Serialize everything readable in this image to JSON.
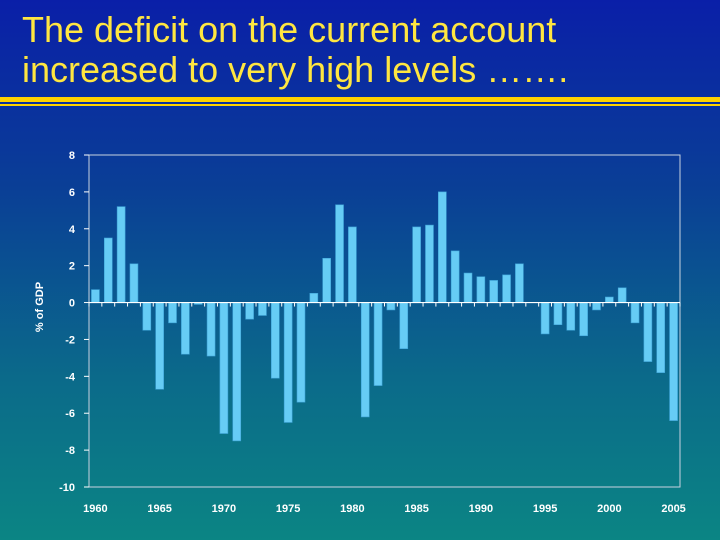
{
  "slide": {
    "title_lines": [
      "The deficit on the current account",
      "increased to very high levels ……."
    ],
    "title_color": "#ffe640",
    "rule_color": "#ffd200"
  },
  "chart_data": {
    "type": "bar",
    "title": "",
    "xlabel": "",
    "ylabel": "% of GDP",
    "ylim": [
      -10,
      8
    ],
    "yticks": [
      "8",
      "6",
      "4",
      "2",
      "0",
      "-2",
      "-4",
      "-6",
      "-8",
      "-10"
    ],
    "xtick_labels": [
      "1960",
      "1965",
      "1970",
      "1975",
      "1980",
      "1985",
      "1990",
      "1995",
      "2000",
      "2005"
    ],
    "grid": false,
    "bar_color": "#66ccf5",
    "categories": [
      1960,
      1961,
      1962,
      1963,
      1964,
      1965,
      1966,
      1967,
      1968,
      1969,
      1970,
      1971,
      1972,
      1973,
      1974,
      1975,
      1976,
      1977,
      1978,
      1979,
      1980,
      1981,
      1982,
      1983,
      1984,
      1985,
      1986,
      1987,
      1988,
      1989,
      1990,
      1991,
      1992,
      1993,
      1994,
      1995,
      1996,
      1997,
      1998,
      1999,
      2000,
      2001,
      2002,
      2003,
      2004,
      2005
    ],
    "values": [
      0.7,
      3.5,
      5.2,
      2.1,
      -1.5,
      -4.7,
      -1.1,
      -2.8,
      -0.1,
      -2.9,
      -7.1,
      -7.5,
      -0.9,
      -0.7,
      -4.1,
      -6.5,
      -5.4,
      0.5,
      2.4,
      5.3,
      4.1,
      -6.2,
      -4.5,
      -0.4,
      -2.5,
      4.1,
      4.2,
      6.0,
      2.8,
      1.6,
      1.4,
      1.2,
      1.5,
      2.1,
      0.0,
      -1.7,
      -1.2,
      -1.5,
      -1.8,
      -0.4,
      0.3,
      0.8,
      -1.1,
      -3.2,
      -3.8,
      -6.4
    ]
  }
}
